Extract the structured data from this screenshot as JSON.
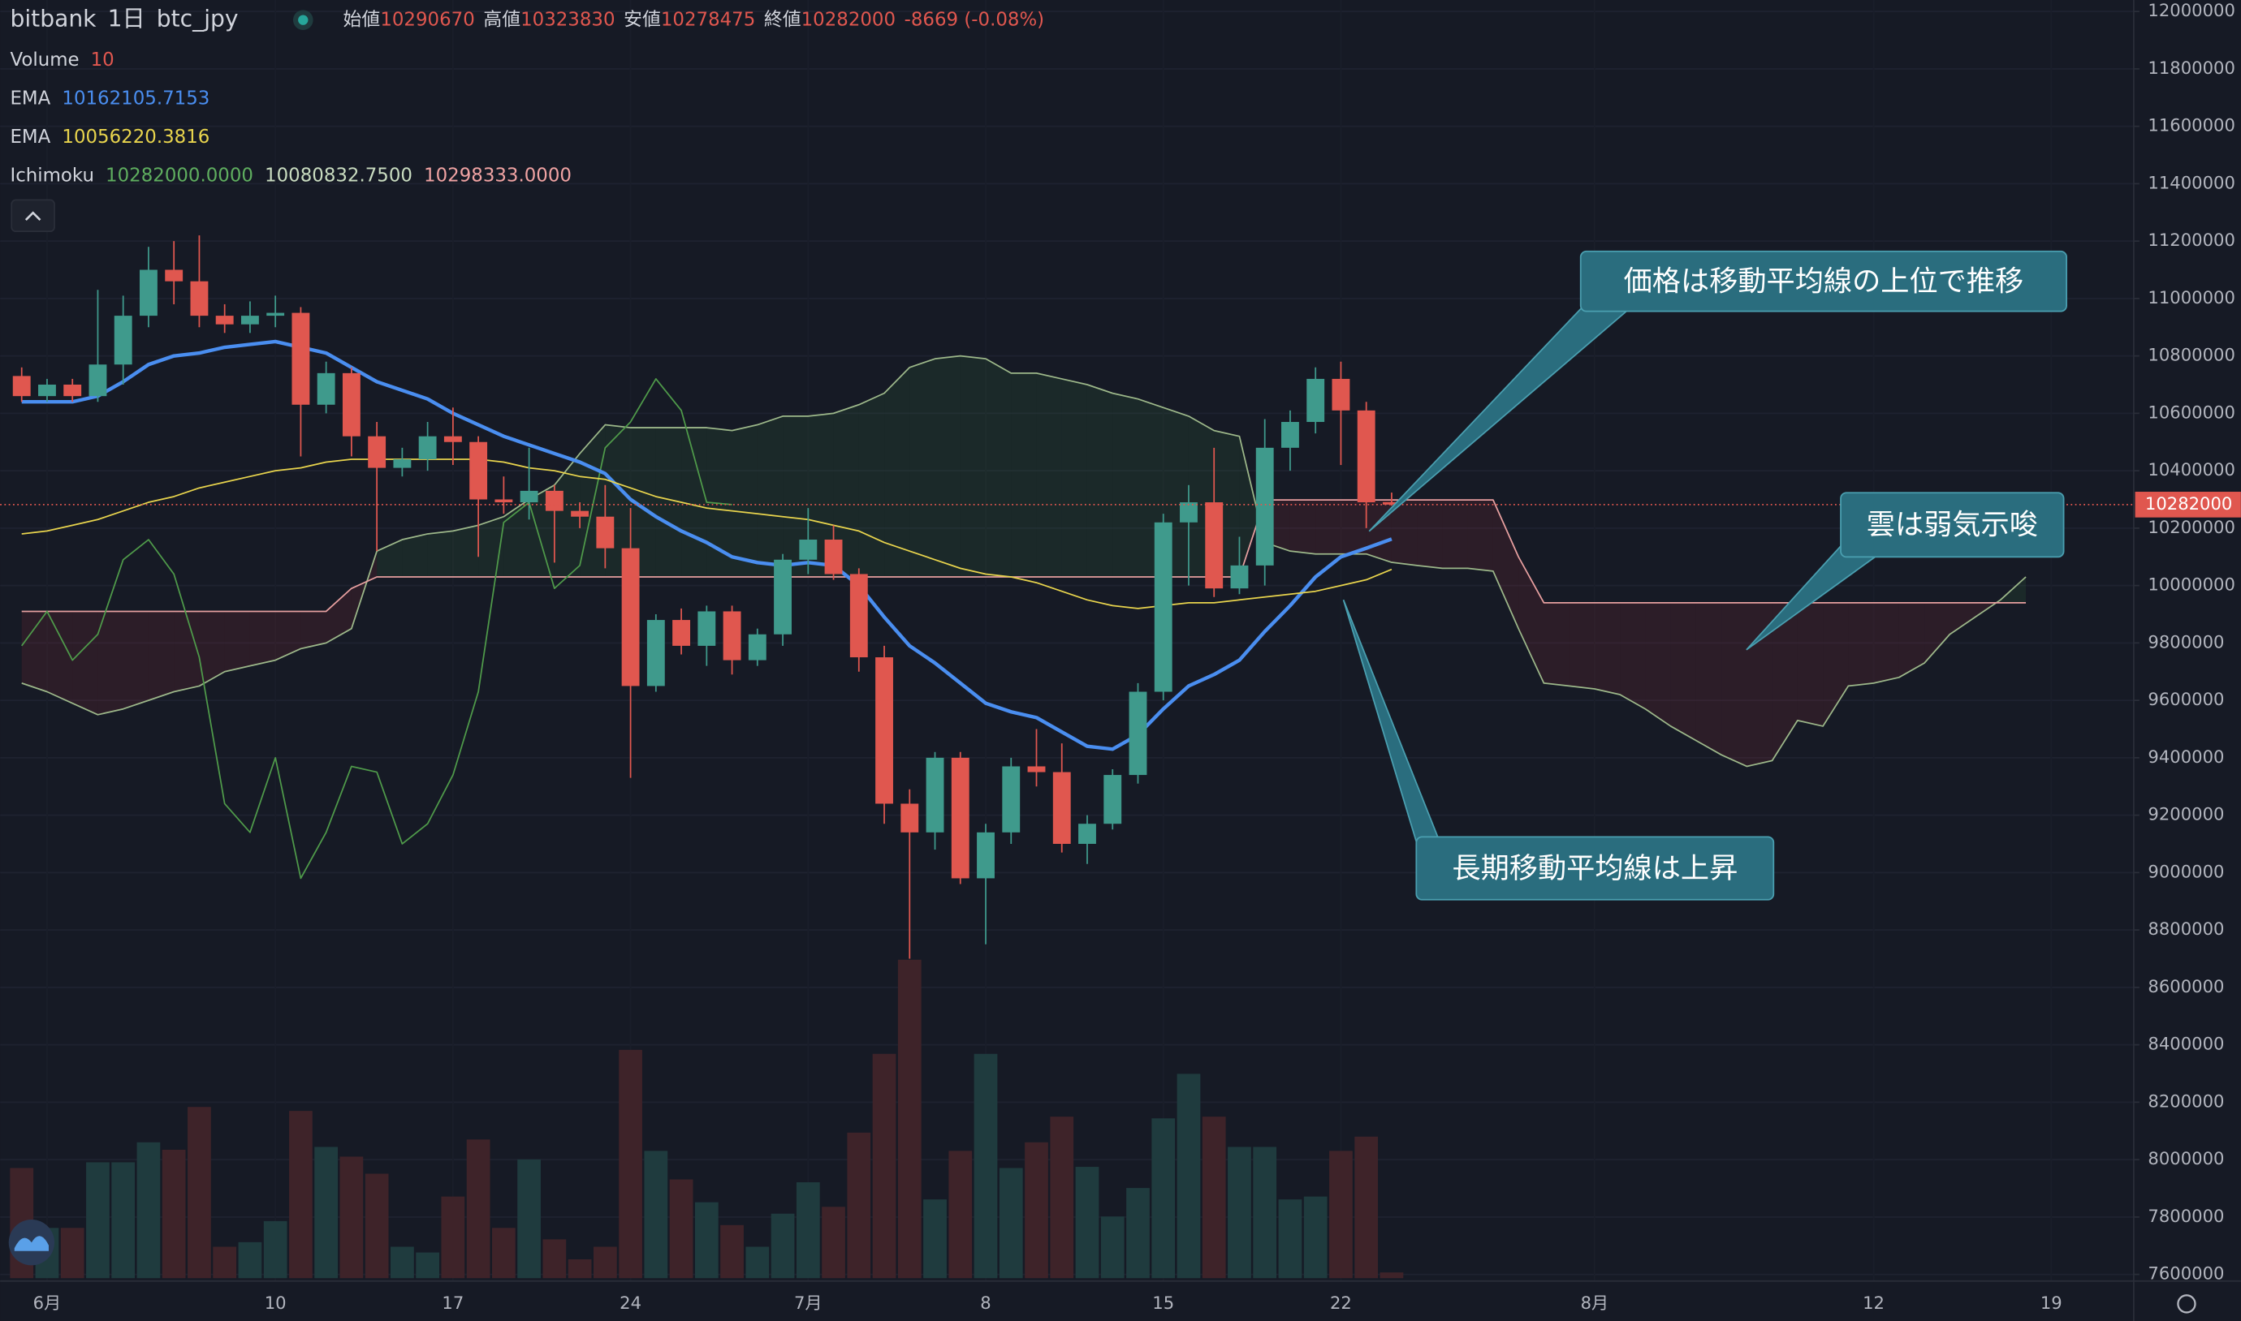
{
  "chart_data": {
    "type": "candlestick",
    "header": {
      "exchange": "bitbank",
      "interval": "1日",
      "symbol": "btc_jpy",
      "ohlc_labels": [
        "始値",
        "高値",
        "安値",
        "終値"
      ],
      "change": "-8669 (-0.08%)"
    },
    "open": [
      10730000,
      10660000,
      10700000,
      10660000,
      10770000,
      10940000,
      11100000,
      11060000,
      10940000,
      10910000,
      10940000,
      10950000,
      10630000,
      10740000,
      10520000,
      10410000,
      10440000,
      10520000,
      10500000,
      10300000,
      10290000,
      10330000,
      10260000,
      10240000,
      10130000,
      9650000,
      9880000,
      9790000,
      9910000,
      9740000,
      9830000,
      10090000,
      10160000,
      10040000,
      9750000,
      9240000,
      9140000,
      9400000,
      8980000,
      9140000,
      9370000,
      9350000,
      9100000,
      9170000,
      9340000,
      9630000,
      10220000,
      10290000,
      9990000,
      10070000,
      10480000,
      10570000,
      10720000,
      10610000,
      10290670
    ],
    "high": [
      10760000,
      10720000,
      10720000,
      11030000,
      11010000,
      11180000,
      11200000,
      11220000,
      10980000,
      10990000,
      11010000,
      10970000,
      10780000,
      10760000,
      10570000,
      10480000,
      10570000,
      10620000,
      10520000,
      10380000,
      10480000,
      10350000,
      10290000,
      10350000,
      10270000,
      9900000,
      9920000,
      9930000,
      9930000,
      9850000,
      10110000,
      10270000,
      10210000,
      10060000,
      9790000,
      9290000,
      9420000,
      9420000,
      9170000,
      9400000,
      9500000,
      9450000,
      9200000,
      9360000,
      9660000,
      10250000,
      10350000,
      10480000,
      10170000,
      10580000,
      10610000,
      10760000,
      10780000,
      10640000,
      10323830
    ],
    "low": [
      10640000,
      10640000,
      10640000,
      10640000,
      10700000,
      10900000,
      10980000,
      10900000,
      10880000,
      10880000,
      10900000,
      10450000,
      10600000,
      10450000,
      10120000,
      10380000,
      10400000,
      10420000,
      10100000,
      10250000,
      10230000,
      10080000,
      10200000,
      10060000,
      9330000,
      9630000,
      9760000,
      9720000,
      9690000,
      9720000,
      9790000,
      10040000,
      10020000,
      9700000,
      9170000,
      8700000,
      9080000,
      8960000,
      8750000,
      9100000,
      9300000,
      9070000,
      9030000,
      9150000,
      9310000,
      9600000,
      10000000,
      9960000,
      9970000,
      10000000,
      10400000,
      10530000,
      10420000,
      10200000,
      10278475
    ],
    "close": [
      10660000,
      10700000,
      10660000,
      10770000,
      10940000,
      11100000,
      11060000,
      10940000,
      10910000,
      10940000,
      10950000,
      10630000,
      10740000,
      10520000,
      10410000,
      10440000,
      10520000,
      10500000,
      10300000,
      10290000,
      10330000,
      10260000,
      10240000,
      10130000,
      9650000,
      9880000,
      9790000,
      9910000,
      9740000,
      9830000,
      10090000,
      10160000,
      10040000,
      9750000,
      9240000,
      9140000,
      9400000,
      8980000,
      9140000,
      9370000,
      9350000,
      9100000,
      9170000,
      9340000,
      9630000,
      10220000,
      10290000,
      9990000,
      10070000,
      10480000,
      10570000,
      10720000,
      10610000,
      10290000,
      10282000
    ],
    "up_color": "#3f9a8c",
    "down_color": "#e0574f",
    "volume": {
      "name": "Volume",
      "up_color": "#1f3b3e",
      "down_color": "#3e2329",
      "values": [
        193,
        88,
        88,
        203,
        203,
        238,
        225,
        300,
        55,
        63,
        100,
        293,
        230,
        213,
        183,
        55,
        45,
        143,
        243,
        88,
        208,
        68,
        33,
        55,
        400,
        223,
        173,
        133,
        93,
        55,
        113,
        168,
        125,
        255,
        393,
        558,
        138,
        223,
        393,
        193,
        238,
        283,
        195,
        108,
        158,
        280,
        358,
        283,
        230,
        230,
        138,
        143,
        223,
        248,
        10
      ]
    },
    "series": [
      {
        "name": "EMA",
        "color": "#4a8ef0",
        "values": [
          10640000,
          10640000,
          10640000,
          10660000,
          10710000,
          10770000,
          10800000,
          10810000,
          10830000,
          10840000,
          10850000,
          10830000,
          10810000,
          10760000,
          10710000,
          10680000,
          10650000,
          10600000,
          10560000,
          10520000,
          10490000,
          10460000,
          10430000,
          10390000,
          10300000,
          10240000,
          10190000,
          10150000,
          10100000,
          10080000,
          10070000,
          10080000,
          10070000,
          10000000,
          9890000,
          9790000,
          9730000,
          9660000,
          9590000,
          9560000,
          9540000,
          9490000,
          9440000,
          9430000,
          9480000,
          9570000,
          9650000,
          9690000,
          9740000,
          9840000,
          9930000,
          10030000,
          10100000,
          10130000,
          10162105.7153
        ]
      },
      {
        "name": "EMA",
        "color": "#e8d44d",
        "values": [
          10180000,
          10190000,
          10210000,
          10230000,
          10260000,
          10290000,
          10310000,
          10340000,
          10360000,
          10380000,
          10400000,
          10410000,
          10430000,
          10440000,
          10440000,
          10440000,
          10440000,
          10440000,
          10440000,
          10430000,
          10410000,
          10400000,
          10380000,
          10370000,
          10340000,
          10310000,
          10290000,
          10270000,
          10260000,
          10250000,
          10240000,
          10230000,
          10210000,
          10190000,
          10150000,
          10120000,
          10090000,
          10060000,
          10040000,
          10030000,
          10010000,
          9980000,
          9950000,
          9930000,
          9920000,
          9930000,
          9940000,
          9940000,
          9950000,
          9960000,
          9970000,
          9980000,
          10000000,
          10020000,
          10056220.3816
        ]
      }
    ],
    "ichimoku": {
      "name": "Ichimoku",
      "value_labels": [
        "10282000.0000",
        "10080832.7500",
        "10298333.0000"
      ],
      "label_colors": [
        "#5fae5f",
        "#c9dcc0",
        "#f0a3a3"
      ],
      "lagging_color": "#4f9a4a",
      "span_a": {
        "color": "#9db88a",
        "values": [
          9660000,
          9630000,
          9590000,
          9550000,
          9570000,
          9600000,
          9630000,
          9650000,
          9700000,
          9720000,
          9740000,
          9780000,
          9800000,
          9850000,
          10120000,
          10160000,
          10180000,
          10190000,
          10210000,
          10240000,
          10300000,
          10350000,
          10460000,
          10560000,
          10550000,
          10550000,
          10550000,
          10550000,
          10540000,
          10560000,
          10590000,
          10590000,
          10600000,
          10630000,
          10670000,
          10760000,
          10790000,
          10800000,
          10790000,
          10740000,
          10740000,
          10720000,
          10700000,
          10670000,
          10650000,
          10620000,
          10590000,
          10540000,
          10520000,
          10150000,
          10120000,
          10110000,
          10110000,
          10110000,
          10080832.75,
          10070000,
          10060000,
          10060000,
          10050000,
          9850000,
          9660000,
          9650000,
          9640000,
          9620000,
          9570000,
          9510000,
          9460000,
          9410000,
          9370000,
          9390000,
          9530000,
          9510000,
          9650000,
          9660000,
          9680000,
          9730000,
          9830000,
          9890000,
          9950000,
          10030000
        ]
      },
      "span_b": {
        "color": "#e8a0a0",
        "values": [
          9910000,
          9910000,
          9910000,
          9910000,
          9910000,
          9910000,
          9910000,
          9910000,
          9910000,
          9910000,
          9910000,
          9910000,
          9910000,
          9990000,
          10030000,
          10030000,
          10030000,
          10030000,
          10030000,
          10030000,
          10030000,
          10030000,
          10030000,
          10030000,
          10030000,
          10030000,
          10030000,
          10030000,
          10030000,
          10030000,
          10030000,
          10030000,
          10030000,
          10030000,
          10030000,
          10030000,
          10030000,
          10030000,
          10030000,
          10030000,
          10030000,
          10030000,
          10030000,
          10030000,
          10030000,
          10030000,
          10030000,
          10030000,
          10030000,
          10298333,
          10298333,
          10298333,
          10298333,
          10298333,
          10298333,
          10298333,
          10298333,
          10298333,
          10298333,
          10100000,
          9940000,
          9940000,
          9940000,
          9940000,
          9940000,
          9940000,
          9940000,
          9940000,
          9940000,
          9940000,
          9940000,
          9940000,
          9940000,
          9940000,
          9940000,
          9940000,
          9940000,
          9940000,
          9940000,
          9940000
        ]
      },
      "bull_fill": "rgba(76,175,80,0.10)",
      "bear_fill": "rgba(242,54,69,0.10)"
    },
    "xlim": [
      -0.85,
      83.25
    ],
    "xticks": [
      {
        "value": 1,
        "label": "6月"
      },
      {
        "value": 10,
        "label": "10"
      },
      {
        "value": 17,
        "label": "17"
      },
      {
        "value": 24,
        "label": "24"
      },
      {
        "value": 31,
        "label": "7月"
      },
      {
        "value": 38,
        "label": "8"
      },
      {
        "value": 45,
        "label": "15"
      },
      {
        "value": 52,
        "label": "22"
      },
      {
        "value": 62,
        "label": "8月"
      },
      {
        "value": 73,
        "label": "12"
      },
      {
        "value": 80,
        "label": "19"
      }
    ],
    "ylim": [
      7577000,
      12040000
    ],
    "yticks": [
      7600000,
      7800000,
      8000000,
      8200000,
      8400000,
      8600000,
      8800000,
      9000000,
      9200000,
      9400000,
      9600000,
      9800000,
      10000000,
      10200000,
      10400000,
      10600000,
      10800000,
      11000000,
      11200000,
      11400000,
      11600000,
      11800000,
      12000000
    ],
    "grid": true,
    "annotations": [
      "価格は移動平均線の上位で推移",
      "雲は弱気示唆",
      "長期移動平均線は上昇"
    ]
  }
}
